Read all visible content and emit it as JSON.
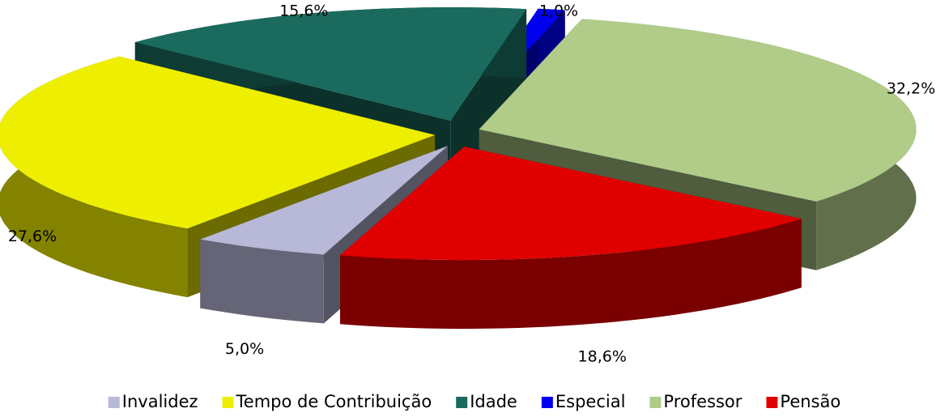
{
  "chart_data": {
    "type": "pie3d",
    "categories": [
      "Invalidez",
      "Tempo de Contribuição",
      "Idade",
      "Especial",
      "Professor",
      "Pensão"
    ],
    "values": [
      5.0,
      27.6,
      15.6,
      1.0,
      32.2,
      18.6
    ],
    "value_labels": [
      "5,0%",
      "27,6%",
      "15,6%",
      "1,0%",
      "32,2%",
      "18,6%"
    ],
    "colors": [
      "#b8b8d8",
      "#eeee00",
      "#1a6b5e",
      "#0000ee",
      "#b0cc88",
      "#e00000"
    ],
    "legend": "bottom"
  }
}
